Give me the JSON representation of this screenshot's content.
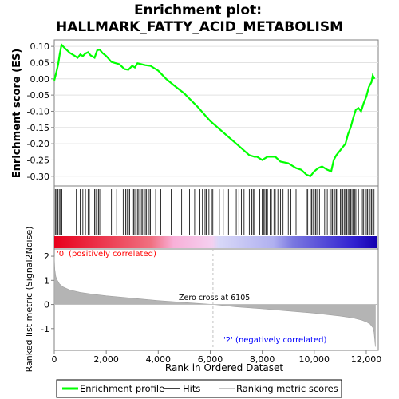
{
  "title_line1": "Enrichment plot:",
  "title_line2": "HALLMARK_FATTY_ACID_METABOLISM",
  "colors": {
    "es_line": "#00ff00",
    "hits": "#000000",
    "metric_fill": "#b4b4b4",
    "positive_label": "#ff0000",
    "negative_label": "#0000ff",
    "zero_cross_line": "#c0c0c0"
  },
  "chart_data": [
    {
      "type": "line",
      "panel": "enrichment_profile",
      "ylabel": "Enrichment score (ES)",
      "ylim": [
        -0.33,
        0.12
      ],
      "xlim": [
        0,
        12400
      ],
      "yticks": [
        "0.10",
        "0.05",
        "0.00",
        "-0.05",
        "-0.10",
        "-0.15",
        "-0.20",
        "-0.25",
        "-0.30"
      ],
      "ytick_values": [
        0.1,
        0.05,
        0.0,
        -0.05,
        -0.1,
        -0.15,
        -0.2,
        -0.25,
        -0.3
      ],
      "grid": true,
      "series": [
        {
          "name": "Enrichment profile",
          "x": [
            0,
            80,
            150,
            210,
            280,
            400,
            600,
            800,
            900,
            1000,
            1100,
            1200,
            1300,
            1400,
            1550,
            1650,
            1750,
            1850,
            2000,
            2200,
            2500,
            2700,
            2850,
            3000,
            3100,
            3200,
            3350,
            3500,
            3700,
            4000,
            4300,
            4600,
            5000,
            5500,
            6000,
            6500,
            7000,
            7500,
            7700,
            7800,
            8000,
            8200,
            8500,
            8700,
            9000,
            9300,
            9500,
            9700,
            9850,
            10000,
            10150,
            10300,
            10500,
            10650,
            10750,
            10850,
            11000,
            11200,
            11300,
            11400,
            11500,
            11600,
            11700,
            11800,
            11900,
            12000,
            12100,
            12200,
            12250,
            12320
          ],
          "y": [
            -0.005,
            0.02,
            0.045,
            0.075,
            0.105,
            0.095,
            0.08,
            0.07,
            0.065,
            0.075,
            0.07,
            0.078,
            0.082,
            0.072,
            0.065,
            0.088,
            0.09,
            0.08,
            0.07,
            0.052,
            0.045,
            0.03,
            0.028,
            0.04,
            0.035,
            0.048,
            0.045,
            0.042,
            0.04,
            0.025,
            0.0,
            -0.02,
            -0.045,
            -0.085,
            -0.13,
            -0.165,
            -0.2,
            -0.235,
            -0.24,
            -0.24,
            -0.25,
            -0.24,
            -0.24,
            -0.255,
            -0.26,
            -0.275,
            -0.28,
            -0.295,
            -0.3,
            -0.285,
            -0.275,
            -0.27,
            -0.28,
            -0.285,
            -0.25,
            -0.235,
            -0.22,
            -0.2,
            -0.17,
            -0.15,
            -0.12,
            -0.095,
            -0.09,
            -0.1,
            -0.075,
            -0.055,
            -0.025,
            -0.01,
            0.01,
            0.0
          ]
        }
      ]
    },
    {
      "type": "scatter",
      "panel": "hits",
      "series": [
        {
          "name": "Hits",
          "x": [
            40,
            90,
            140,
            190,
            240,
            290,
            850,
            1000,
            1100,
            1200,
            1300,
            1350,
            1550,
            1600,
            1650,
            1700,
            1750,
            2200,
            2400,
            2650,
            2750,
            2800,
            2850,
            2900,
            3000,
            3050,
            3100,
            3150,
            3200,
            3250,
            3350,
            3400,
            3500,
            3550,
            3650,
            3700,
            3900,
            4100,
            4500,
            4900,
            5200,
            5400,
            5600,
            5700,
            5800,
            5850,
            5950,
            6050,
            6100,
            6350,
            6500,
            6700,
            6800,
            7000,
            7100,
            7200,
            7300,
            7500,
            7600,
            7650,
            7700,
            7900,
            8000,
            8050,
            8100,
            8150,
            8200,
            8300,
            8350,
            8450,
            8500,
            8600,
            8700,
            8800,
            9000,
            9100,
            9300,
            9700,
            9750,
            9850,
            9900,
            9950,
            10000,
            10050,
            10100,
            10200,
            10300,
            10400,
            10500,
            10600,
            10650,
            10700,
            10750,
            10800,
            10850,
            10900,
            11000,
            11050,
            11100,
            11150,
            11200,
            11250,
            11300,
            11350,
            11400,
            11450,
            11500,
            11550,
            11600,
            11700,
            11800,
            11850,
            11900,
            12000,
            12050,
            12100,
            12150,
            12200,
            12250,
            12300
          ]
        }
      ]
    },
    {
      "type": "area",
      "panel": "ranked_list_metric",
      "ylabel": "Ranked list metric (Signal2Noise)",
      "xlabel": "Rank in Ordered Dataset",
      "ylim": [
        -1.9,
        2.3
      ],
      "xlim": [
        0,
        12400
      ],
      "yticks": [
        "2",
        "1",
        "0",
        "-1"
      ],
      "ytick_values": [
        2,
        1,
        0,
        -1
      ],
      "xticks": [
        "0",
        "2,000",
        "4,000",
        "6,000",
        "8,000",
        "10,000",
        "12,000"
      ],
      "xtick_values": [
        0,
        2000,
        4000,
        6000,
        8000,
        10000,
        12000
      ],
      "zero_cross_rank": 6105,
      "zero_cross_label": "Zero cross at 6105",
      "positive_label": "'0' (positively correlated)",
      "negative_label": "'2' (negatively correlated)",
      "series": [
        {
          "name": "Ranking metric scores",
          "x": [
            0,
            20,
            60,
            120,
            200,
            350,
            600,
            1000,
            1500,
            2000,
            3000,
            4000,
            5000,
            6105,
            7000,
            8000,
            9000,
            10000,
            11000,
            11500,
            11800,
            12000,
            12150,
            12250,
            12300,
            12330,
            12350
          ],
          "y": [
            2.0,
            1.45,
            1.15,
            1.0,
            0.85,
            0.72,
            0.6,
            0.5,
            0.42,
            0.36,
            0.26,
            0.16,
            0.08,
            0.0,
            -0.1,
            -0.18,
            -0.27,
            -0.36,
            -0.48,
            -0.56,
            -0.64,
            -0.72,
            -0.82,
            -0.95,
            -1.15,
            -1.5,
            -1.75
          ]
        }
      ]
    }
  ],
  "axes": {
    "es_ylabel": "Enrichment score (ES)",
    "metric_ylabel": "Ranked list metric (Signal2Noise)",
    "xlabel": "Rank in Ordered Dataset"
  },
  "legend": {
    "items": [
      {
        "label": "Enrichment profile",
        "color": "#00ff00"
      },
      {
        "label": "Hits",
        "color": "#000000"
      },
      {
        "label": "Ranking metric scores",
        "color": "#b4b4b4"
      }
    ]
  }
}
